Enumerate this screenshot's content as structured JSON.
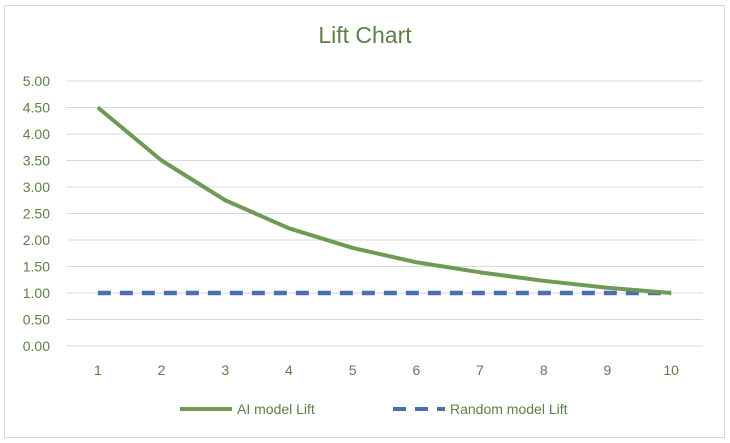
{
  "chart_data": {
    "type": "line",
    "title": "Lift Chart",
    "xlabel": "",
    "ylabel": "",
    "categories": [
      "1",
      "2",
      "3",
      "4",
      "5",
      "6",
      "7",
      "8",
      "9",
      "10"
    ],
    "ylim": [
      0,
      5
    ],
    "yticks": [
      "0.00",
      "0.50",
      "1.00",
      "1.50",
      "2.00",
      "2.50",
      "3.00",
      "3.50",
      "4.00",
      "4.50",
      "5.00"
    ],
    "grid": true,
    "legend_position": "bottom",
    "series": [
      {
        "name": "AI model Lift",
        "values": [
          4.5,
          3.5,
          2.75,
          2.22,
          1.85,
          1.58,
          1.39,
          1.23,
          1.1,
          1.0
        ],
        "color": "#6f9a55",
        "style": "solid"
      },
      {
        "name": "Random model Lift",
        "values": [
          1,
          1,
          1,
          1,
          1,
          1,
          1,
          1,
          1,
          1
        ],
        "color": "#4a6fb0",
        "style": "dashed"
      }
    ],
    "colors": {
      "axis_text": "#5b8146",
      "grid": "#d9d9d9"
    }
  }
}
